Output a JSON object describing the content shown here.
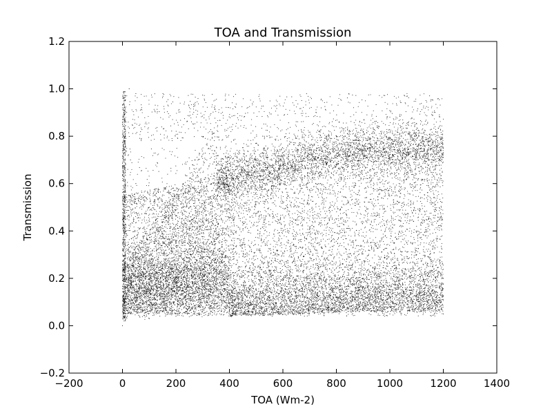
{
  "chart_data": {
    "type": "scatter",
    "title": "TOA and Transmission",
    "xlabel": "TOA (Wm-2)",
    "ylabel": "Transmission",
    "xlim": [
      -200,
      1400
    ],
    "ylim": [
      -0.2,
      1.2
    ],
    "xticks": [
      "−200",
      "0",
      "200",
      "400",
      "600",
      "800",
      "1000",
      "1200",
      "1400"
    ],
    "yticks": [
      "−0.2",
      "0.0",
      "0.2",
      "0.4",
      "0.6",
      "0.8",
      "1.0",
      "1.2"
    ],
    "xtick_values": [
      -200,
      0,
      200,
      400,
      600,
      800,
      1000,
      1200,
      1400
    ],
    "ytick_values": [
      -0.2,
      0.0,
      0.2,
      0.4,
      0.6,
      0.8,
      1.0,
      1.2
    ],
    "grid": false,
    "legend": "none",
    "marker_color": "#000000",
    "x_range_of_points": [
      0,
      1200
    ],
    "series": [
      {
        "values": [
          [
            0,
            0.0
          ],
          [
            10,
            0.95
          ],
          [
            25,
            1.0
          ],
          [
            50,
            0.98
          ],
          [
            5,
            0.88
          ],
          [
            50,
            0.12
          ],
          [
            100,
            0.15
          ],
          [
            150,
            0.1
          ],
          [
            200,
            0.13
          ],
          [
            250,
            0.16
          ],
          [
            300,
            0.17
          ],
          [
            350,
            0.2
          ],
          [
            350,
            0.6
          ],
          [
            370,
            0.65
          ],
          [
            400,
            0.7
          ],
          [
            500,
            0.7
          ],
          [
            600,
            0.68
          ],
          [
            700,
            0.7
          ],
          [
            800,
            0.72
          ],
          [
            900,
            0.74
          ],
          [
            1000,
            0.75
          ],
          [
            1100,
            0.74
          ],
          [
            1200,
            0.75
          ],
          [
            1200,
            0.05
          ],
          [
            1000,
            0.05
          ],
          [
            800,
            0.06
          ],
          [
            600,
            0.07
          ],
          [
            400,
            0.06
          ],
          [
            200,
            0.04
          ],
          [
            100,
            0.03
          ],
          [
            600,
            0.4
          ],
          [
            800,
            0.45
          ],
          [
            1000,
            0.4
          ],
          [
            1100,
            0.3
          ],
          [
            700,
            0.3
          ],
          [
            900,
            0.2
          ],
          [
            1200,
            0.2
          ],
          [
            500,
            0.2
          ],
          [
            450,
            0.35
          ],
          [
            300,
            0.45
          ],
          [
            200,
            0.3
          ],
          [
            150,
            0.25
          ],
          [
            100,
            0.5
          ],
          [
            50,
            0.6
          ],
          [
            30,
            0.7
          ]
        ]
      }
    ]
  }
}
